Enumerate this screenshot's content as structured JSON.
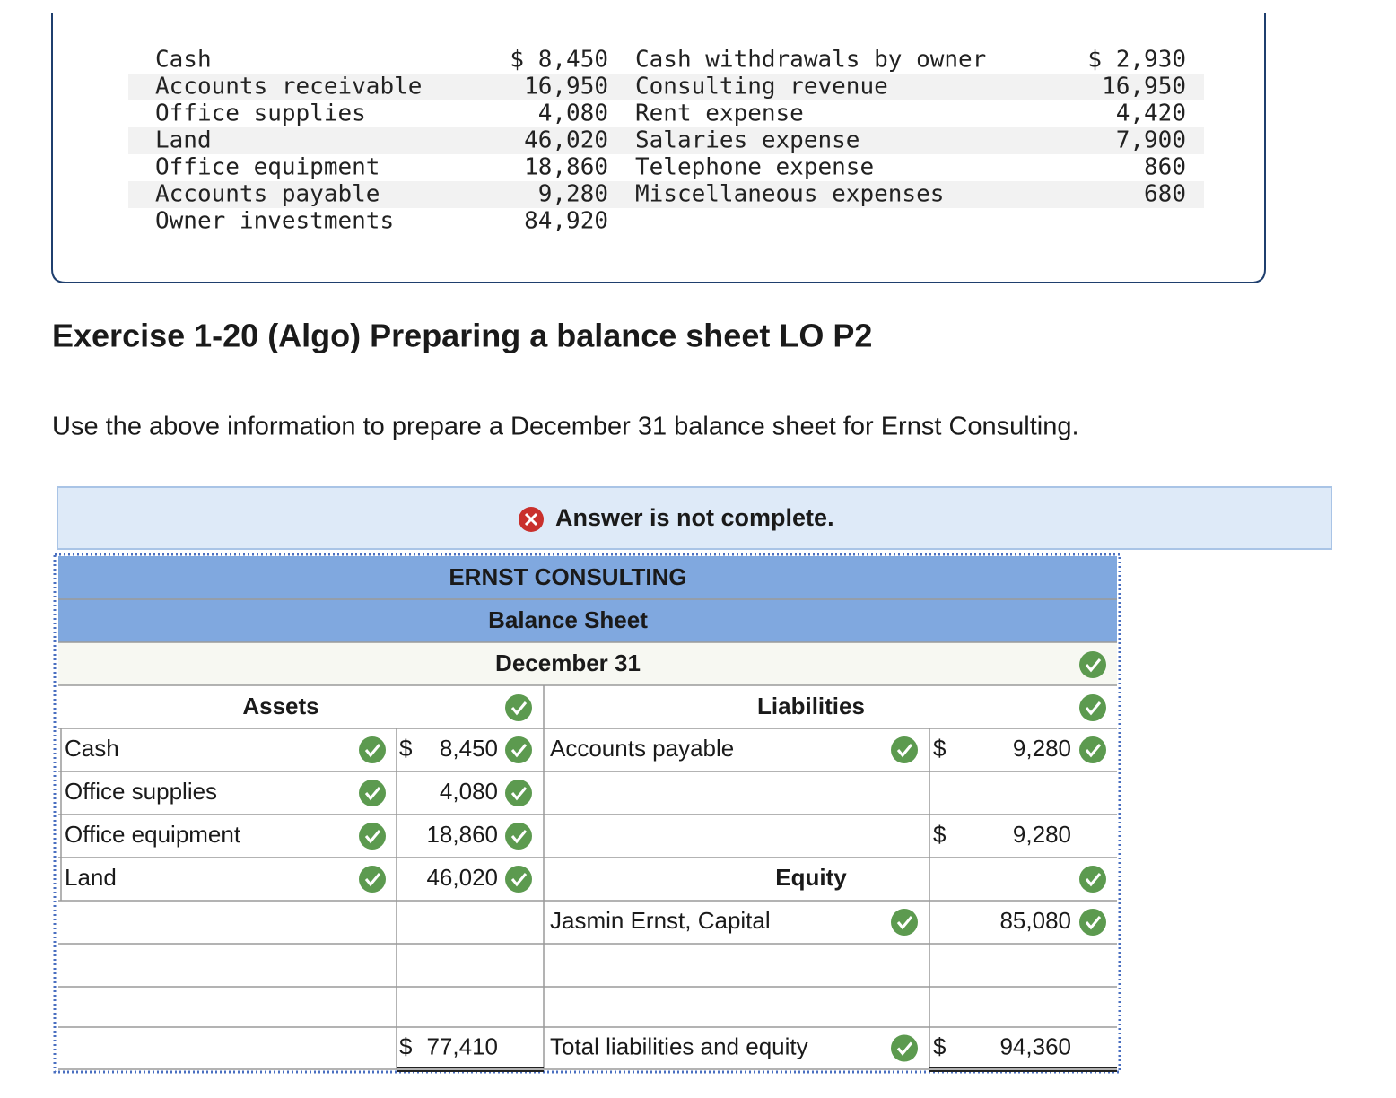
{
  "info": {
    "left": [
      [
        "Cash",
        "$ 8,450"
      ],
      [
        "Accounts receivable",
        "16,950"
      ],
      [
        "Office supplies",
        "4,080"
      ],
      [
        "Land",
        "46,020"
      ],
      [
        "Office equipment",
        "18,860"
      ],
      [
        "Accounts payable",
        "9,280"
      ],
      [
        "Owner investments",
        "84,920"
      ]
    ],
    "right": [
      [
        "Cash withdrawals by owner",
        "$ 2,930"
      ],
      [
        "Consulting revenue",
        "16,950"
      ],
      [
        "Rent expense",
        "4,420"
      ],
      [
        "Salaries expense",
        "7,900"
      ],
      [
        "Telephone expense",
        "860"
      ],
      [
        "Miscellaneous expenses",
        "680"
      ]
    ]
  },
  "exercise_title": "Exercise 1-20 (Algo) Preparing a balance sheet LO P2",
  "instruction": "Use the above information to prepare a December 31 balance sheet for Ernst Consulting.",
  "status": "Answer is not complete.",
  "balance_sheet": {
    "company": "ERNST CONSULTING",
    "statement": "Balance Sheet",
    "date": "December 31",
    "assets_heading": "Assets",
    "liabilities_heading": "Liabilities",
    "equity_heading": "Equity",
    "assets": [
      {
        "label": "Cash",
        "currency": "$",
        "amount": "8,450"
      },
      {
        "label": "Office supplies",
        "amount": "4,080"
      },
      {
        "label": "Office equipment",
        "amount": "18,860"
      },
      {
        "label": "Land",
        "amount": "46,020"
      }
    ],
    "liabilities": [
      {
        "label": "Accounts payable",
        "currency": "$",
        "amount": "9,280"
      }
    ],
    "total_liabilities": {
      "currency": "$",
      "amount": "9,280"
    },
    "equity": [
      {
        "label": "Jasmin Ernst, Capital",
        "amount": "85,080"
      }
    ],
    "total_assets": {
      "currency": "$",
      "amount": "77,410"
    },
    "total_liabilities_equity": {
      "label": "Total liabilities and equity",
      "currency": "$",
      "amount": "94,360"
    }
  }
}
